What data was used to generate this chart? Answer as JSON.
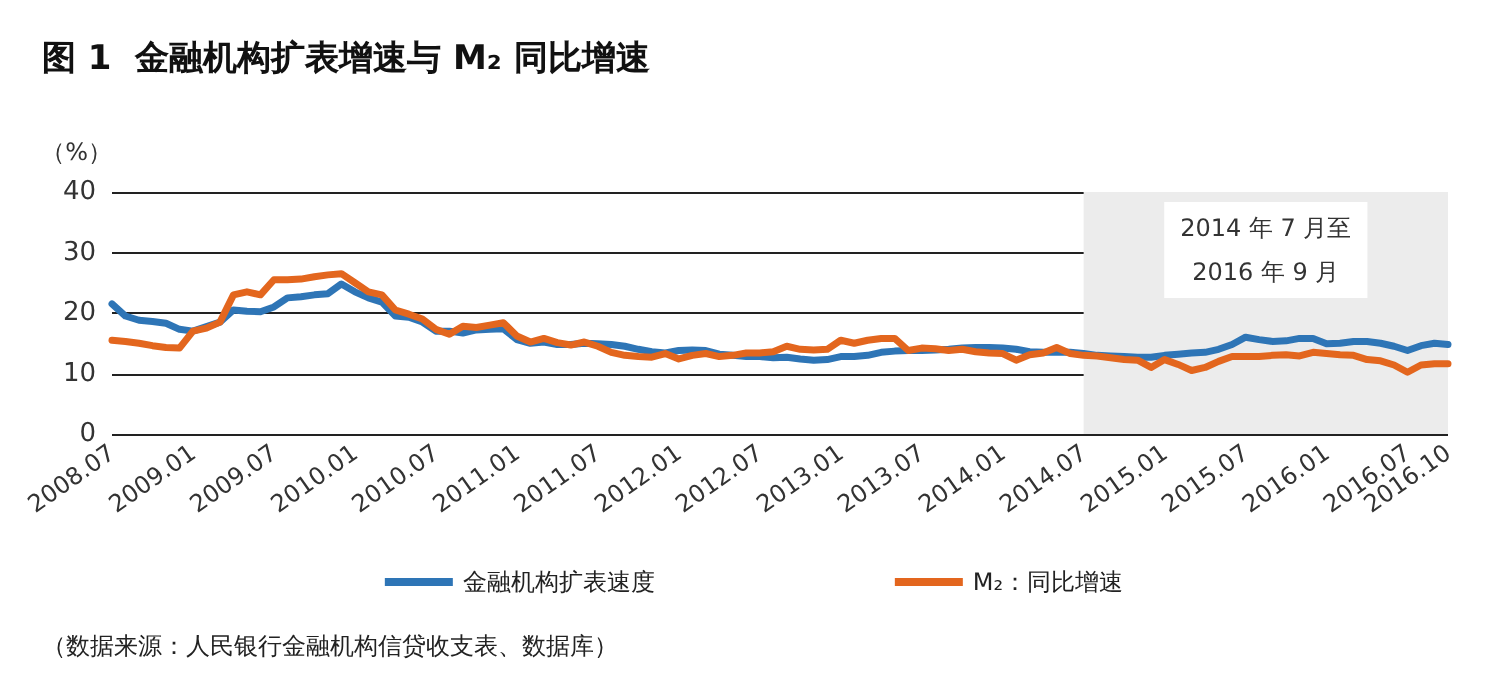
{
  "chart_data": {
    "type": "line",
    "title": "图 1  金融机构扩表增速与 M₂ 同比增速",
    "ylabel": "（%）",
    "categories": [
      "2008.07",
      null,
      null,
      null,
      null,
      null,
      "2009.01",
      null,
      null,
      null,
      null,
      null,
      "2009.07",
      null,
      null,
      null,
      null,
      null,
      "2010.01",
      null,
      null,
      null,
      null,
      null,
      "2010.07",
      null,
      null,
      null,
      null,
      null,
      "2011.01",
      null,
      null,
      null,
      null,
      null,
      "2011.07",
      null,
      null,
      null,
      null,
      null,
      "2012.01",
      null,
      null,
      null,
      null,
      null,
      "2012.07",
      null,
      null,
      null,
      null,
      null,
      "2013.01",
      null,
      null,
      null,
      null,
      null,
      "2013.07",
      null,
      null,
      null,
      null,
      null,
      "2014.01",
      null,
      null,
      null,
      null,
      null,
      "2014.07",
      null,
      null,
      null,
      null,
      null,
      "2015.01",
      null,
      null,
      null,
      null,
      null,
      "2015.07",
      null,
      null,
      null,
      null,
      null,
      "2016.01",
      null,
      null,
      null,
      null,
      null,
      "2016.07",
      null,
      null,
      "2016.10"
    ],
    "series": [
      {
        "name": "金融机构扩表速度",
        "color": "#2e75b6",
        "values": [
          21.5,
          19.5,
          18.8,
          18.6,
          18.3,
          17.3,
          17,
          null,
          18.5,
          20.5,
          20.3,
          20.2,
          21,
          22.5,
          22.7,
          23,
          23.2,
          24.8,
          23.5,
          22.5,
          21.8,
          19.5,
          19.3,
          18.5,
          17,
          17,
          16.7,
          17.2,
          17.3,
          17.4,
          15.6,
          15,
          15.2,
          14.8,
          14.8,
          15,
          14.9,
          14.8,
          14.5,
          14,
          13.6,
          13.4,
          13.8,
          13.9,
          13.8,
          13.2,
          13,
          12.8,
          12.8,
          12.6,
          12.7,
          12.4,
          12.2,
          12.3,
          12.8,
          12.8,
          13,
          13.5,
          13.7,
          13.8,
          13.8,
          13.9,
          14,
          14.2,
          14.3,
          14.3,
          14.2,
          14,
          13.6,
          13.5,
          13.5,
          13.5,
          13.3,
          13,
          12.9,
          12.8,
          12.7,
          12.7,
          13,
          13.2,
          13.4,
          13.5,
          14,
          14.8,
          16,
          15.6,
          15.3,
          15.4,
          15.8,
          15.8,
          14.9,
          15,
          15.3,
          15.3,
          15,
          14.5,
          13.8,
          14.6,
          15,
          14.8
        ]
      },
      {
        "name": "M₂：同比增速",
        "color": "#e3661e",
        "values": [
          15.5,
          15.3,
          15,
          14.6,
          14.3,
          14.2,
          17,
          17.5,
          18.5,
          23,
          23.5,
          23,
          25.5,
          25.5,
          25.6,
          26,
          26.3,
          26.5,
          25,
          23.5,
          23,
          20.5,
          19.8,
          19,
          17.3,
          16.5,
          17.8,
          17.6,
          18,
          18.4,
          16.2,
          15.2,
          15.8,
          15.1,
          14.7,
          15.2,
          14.5,
          13.5,
          13,
          12.8,
          12.7,
          13.3,
          12.4,
          13,
          13.3,
          12.8,
          13,
          13.4,
          13.4,
          13.6,
          14.5,
          14,
          13.9,
          14,
          15.5,
          15,
          15.5,
          15.8,
          15.8,
          13.8,
          14.2,
          14.1,
          13.8,
          14,
          13.6,
          13.4,
          13.3,
          12.2,
          13.1,
          13.4,
          14.3,
          13.3,
          13,
          12.9,
          12.6,
          12.3,
          12.2,
          11,
          12.3,
          11.5,
          10.5,
          11,
          12,
          12.8,
          12.8,
          12.8,
          13,
          13.1,
          12.9,
          13.5,
          13.3,
          13.1,
          13,
          12.3,
          12.1,
          11.4,
          10.2,
          11.4,
          11.6,
          11.6
        ]
      }
    ],
    "ylim": [
      0,
      40
    ],
    "yticks": [
      0,
      10,
      20,
      30,
      40
    ],
    "grid": "y",
    "legend": "bottom",
    "marker": "none",
    "line_style": "solid",
    "bands": [
      {
        "axis": "x",
        "from": "2014.07",
        "to": "2016.10",
        "label": "2014 年 7 月至\n2016 年 9 月",
        "color": "#ececec"
      }
    ],
    "annotations": [
      "（数据来源：人民银行金融机构信贷收支表、数据库）"
    ]
  }
}
